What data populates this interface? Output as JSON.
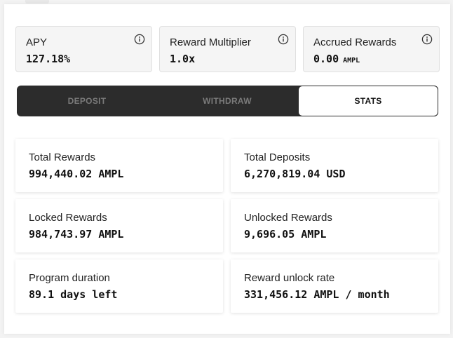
{
  "summary": {
    "apy": {
      "label": "APY",
      "value": "127.18%"
    },
    "multiplier": {
      "label": "Reward Multiplier",
      "value": "1.0x"
    },
    "accrued": {
      "label": "Accrued Rewards",
      "value": "0.00",
      "unit": "AMPL"
    }
  },
  "tabs": [
    {
      "label": "DEPOSIT",
      "active": false
    },
    {
      "label": "WITHDRAW",
      "active": false
    },
    {
      "label": "STATS",
      "active": true
    }
  ],
  "stats": {
    "total_rewards": {
      "label": "Total Rewards",
      "value": "994,440.02 AMPL"
    },
    "total_deposits": {
      "label": "Total Deposits",
      "value": "6,270,819.04 USD"
    },
    "locked_rewards": {
      "label": "Locked Rewards",
      "value": "984,743.97 AMPL"
    },
    "unlocked_rewards": {
      "label": "Unlocked Rewards",
      "value": "9,696.05 AMPL"
    },
    "program_duration": {
      "label": "Program duration",
      "value": "89.1 days left"
    },
    "unlock_rate": {
      "label": "Reward unlock rate",
      "value": "331,456.12 AMPL / month"
    }
  },
  "icons": {
    "info": "info-circle-icon"
  },
  "colors": {
    "tab_bar": "#2c2c2c",
    "active_tab": "#ffffff",
    "inactive_tab_text": "#7a7a7a"
  }
}
